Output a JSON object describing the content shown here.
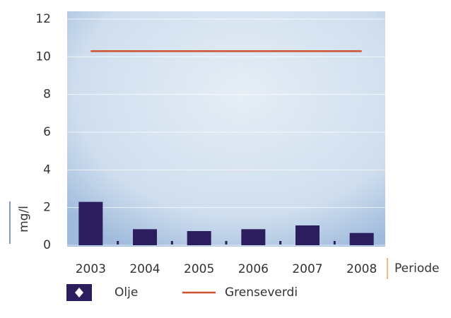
{
  "chart_data": {
    "type": "bar",
    "categories": [
      "2003",
      "2004",
      "2005",
      "2006",
      "2007",
      "2008"
    ],
    "series": [
      {
        "name": "Olje",
        "color": "#2b1d5e",
        "values": [
          2.3,
          0.85,
          0.75,
          0.85,
          1.05,
          0.65
        ]
      },
      {
        "name": "Grenseverdi",
        "type": "line",
        "color": "#c9532c",
        "values": [
          10.3,
          10.3,
          10.3,
          10.3,
          10.3,
          10.3
        ]
      }
    ],
    "ylim": [
      0,
      12
    ],
    "yticks": [
      0,
      2,
      4,
      6,
      8,
      10,
      12
    ],
    "y_label": "mg/l",
    "x_label": "Periode",
    "grid": true
  }
}
